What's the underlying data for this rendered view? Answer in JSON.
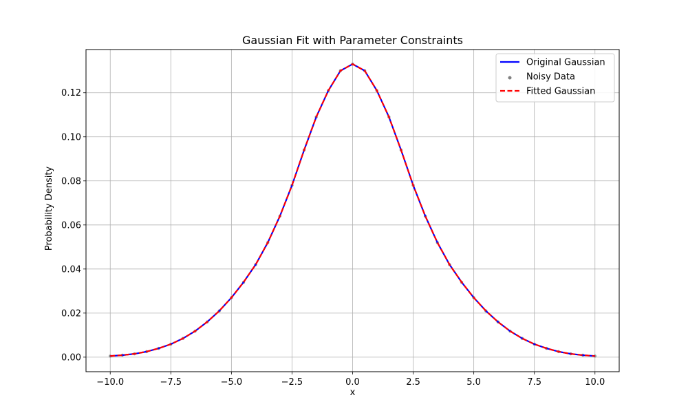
{
  "chart_data": {
    "type": "line",
    "title": "Gaussian Fit with Parameter Constraints",
    "xlabel": "x",
    "ylabel": "Probability Density",
    "xlim": [
      -11.0,
      11.0
    ],
    "ylim": [
      -0.0066,
      0.1396
    ],
    "xticks": [
      -10.0,
      -7.5,
      -5.0,
      -2.5,
      0.0,
      2.5,
      5.0,
      7.5,
      10.0
    ],
    "xtick_labels": [
      "−10.0",
      "−7.5",
      "−5.0",
      "−2.5",
      "0.0",
      "2.5",
      "5.0",
      "7.5",
      "10.0"
    ],
    "yticks": [
      0.0,
      0.02,
      0.04,
      0.06,
      0.08,
      0.1,
      0.12
    ],
    "ytick_labels": [
      "0.00",
      "0.02",
      "0.04",
      "0.06",
      "0.08",
      "0.10",
      "0.12"
    ],
    "grid": true,
    "legend_position": "top-right",
    "x": [
      -10.0,
      -9.5,
      -9.0,
      -8.5,
      -8.0,
      -7.5,
      -7.0,
      -6.5,
      -6.0,
      -5.5,
      -5.0,
      -4.5,
      -4.0,
      -3.5,
      -3.0,
      -2.5,
      -2.0,
      -1.5,
      -1.0,
      -0.5,
      0.0,
      0.5,
      1.0,
      1.5,
      2.0,
      2.5,
      3.0,
      3.5,
      4.0,
      4.5,
      5.0,
      5.5,
      6.0,
      6.5,
      7.0,
      7.5,
      8.0,
      8.5,
      9.0,
      9.5,
      10.0
    ],
    "series": [
      {
        "name": "Original Gaussian",
        "style": "solid",
        "color": "#0000ff",
        "values": [
          0.0005,
          0.0009,
          0.0015,
          0.0025,
          0.004,
          0.0059,
          0.0085,
          0.0118,
          0.016,
          0.021,
          0.027,
          0.034,
          0.042,
          0.052,
          0.064,
          0.078,
          0.094,
          0.109,
          0.121,
          0.13,
          0.133,
          0.13,
          0.121,
          0.109,
          0.094,
          0.078,
          0.064,
          0.052,
          0.042,
          0.034,
          0.027,
          0.021,
          0.016,
          0.0118,
          0.0085,
          0.0059,
          0.004,
          0.0025,
          0.0015,
          0.0009,
          0.0005
        ]
      },
      {
        "name": "Noisy Data",
        "style": "points",
        "color": "#808080",
        "values": [
          0.0005,
          0.0009,
          0.0015,
          0.0025,
          0.004,
          0.0059,
          0.0085,
          0.0118,
          0.016,
          0.021,
          0.027,
          0.034,
          0.042,
          0.052,
          0.064,
          0.078,
          0.094,
          0.109,
          0.121,
          0.13,
          0.133,
          0.13,
          0.121,
          0.109,
          0.094,
          0.078,
          0.064,
          0.052,
          0.042,
          0.034,
          0.027,
          0.021,
          0.016,
          0.0118,
          0.0085,
          0.0059,
          0.004,
          0.0025,
          0.0015,
          0.0009,
          0.0005
        ]
      },
      {
        "name": "Fitted Gaussian",
        "style": "dashed",
        "color": "#ff0000",
        "values": [
          0.0005,
          0.0009,
          0.0015,
          0.0025,
          0.004,
          0.0059,
          0.0085,
          0.0118,
          0.016,
          0.021,
          0.027,
          0.034,
          0.042,
          0.052,
          0.064,
          0.078,
          0.094,
          0.109,
          0.121,
          0.13,
          0.133,
          0.13,
          0.121,
          0.109,
          0.094,
          0.078,
          0.064,
          0.052,
          0.042,
          0.034,
          0.027,
          0.021,
          0.016,
          0.0118,
          0.0085,
          0.0059,
          0.004,
          0.0025,
          0.0015,
          0.0009,
          0.0005
        ]
      }
    ]
  }
}
